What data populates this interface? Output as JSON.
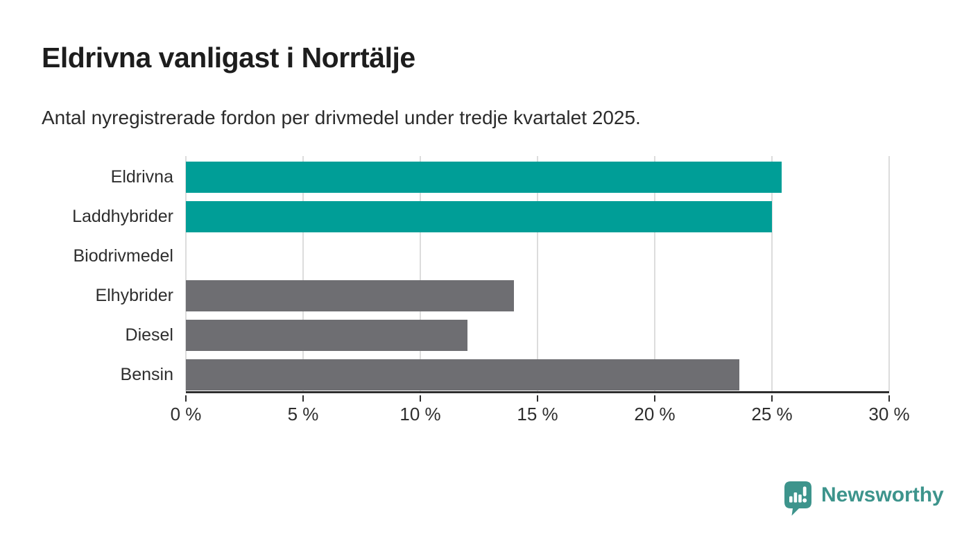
{
  "title": "Eldrivna vanligast i Norrtälje",
  "subtitle": "Antal nyregistrerade fordon per drivmedel under tredje kvartalet 2025.",
  "brand": {
    "name": "Newsworthy",
    "color": "#3d948c"
  },
  "colors": {
    "highlight_bar": "#009e97",
    "default_bar": "#6e6e72",
    "gridline": "#dcdcdc",
    "axis": "#2e2e2e",
    "title_text": "#1d1d1d",
    "body_text": "#2b2b2b"
  },
  "chart_data": {
    "type": "bar",
    "orientation": "horizontal",
    "title": "Eldrivna vanligast i Norrtälje",
    "subtitle": "Antal nyregistrerade fordon per drivmedel under tredje kvartalet 2025.",
    "categories": [
      "Eldrivna",
      "Laddhybrider",
      "Biodrivmedel",
      "Elhybrider",
      "Diesel",
      "Bensin"
    ],
    "values": [
      25.4,
      25.0,
      0,
      14.0,
      12.0,
      23.6
    ],
    "bar_colors": [
      "#009e97",
      "#009e97",
      "#6e6e72",
      "#6e6e72",
      "#6e6e72",
      "#6e6e72"
    ],
    "xlabel": "",
    "ylabel": "",
    "xlim": [
      0,
      30
    ],
    "x_ticks": [
      0,
      5,
      10,
      15,
      20,
      25,
      30
    ],
    "x_tick_labels": [
      "0 %",
      "5 %",
      "10 %",
      "15 %",
      "20 %",
      "25 %",
      "30 %"
    ],
    "grid": true,
    "legend": false
  }
}
